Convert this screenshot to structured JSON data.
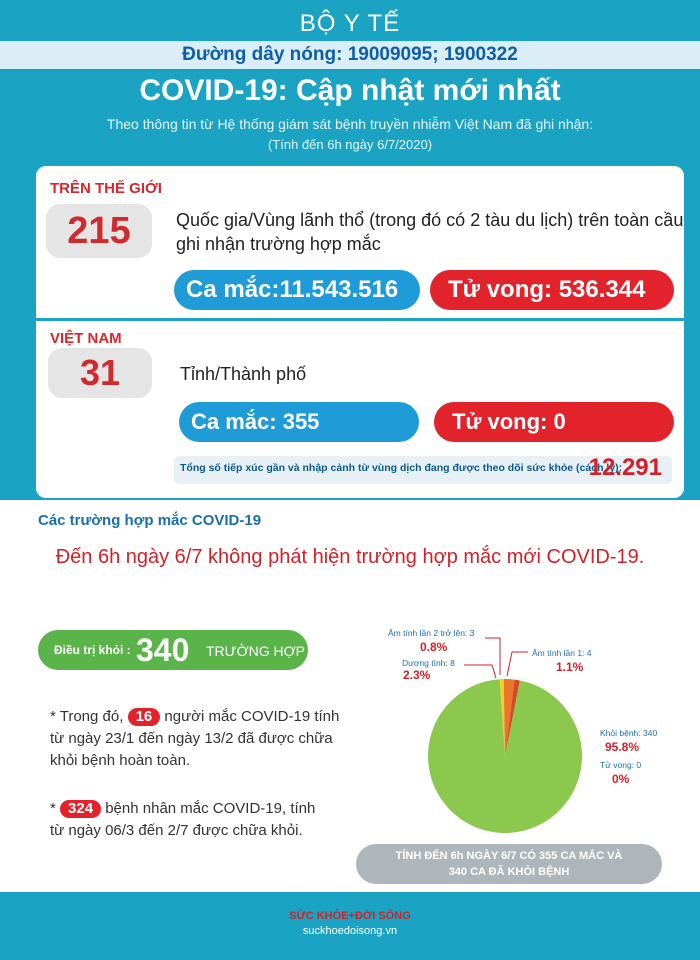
{
  "header": {
    "ministry": "BỘ Y TẾ",
    "hotline": "Đường dây nóng: 19009095; 1900322",
    "title": "COVID-19: Cập nhật mới nhất",
    "subtitle": "Theo thông tin từ Hệ thống giám sát bệnh truyền nhiễm Việt Nam đã ghi nhận:",
    "date_note": "(Tính đến 6h ngày 6/7/2020)"
  },
  "world": {
    "label": "TRÊN THẾ GIỚI",
    "count": "215",
    "desc_line1": "Quốc gia/Vùng lãnh thổ (trong đó có 2 tàu du lịch) trên toàn cầu",
    "desc_line2": "ghi nhận trường hợp mắc",
    "cases": "Ca mắc:11.543.516",
    "deaths": "Tử vong:  536.344"
  },
  "vietnam": {
    "label": "VIỆT NAM",
    "count": "31",
    "desc": "Tỉnh/Thành phố",
    "cases": "Ca mắc: 355",
    "deaths": "Tử vong:  0",
    "contacts_label": "Tổng số tiếp xúc gần và nhập cảnh từ vùng dịch đang được theo dõi sức khỏe (cách ly):",
    "contacts_value": "12.291"
  },
  "cases_section": {
    "title": "Các trường hợp mắc COVID-19",
    "headline": "Đến 6h ngày 6/7 không phát hiện trường hợp mắc mới COVID-19.",
    "treated_label": "Điều trị khỏi :",
    "treated_value": "340",
    "treated_unit": "TRƯỜNG HỢP",
    "note1_prefix": "* Trong đó,",
    "note1_badge": "16",
    "note1_l1": "người mắc COVID-19 tính",
    "note1_l2": "từ ngày 23/1 đến ngày 13/2 đã được chữa",
    "note1_l3": "khỏi bệnh hoàn toàn.",
    "note2_prefix": "*",
    "note2_badge": "324",
    "note2_l1": "bệnh nhân  mắc COVID-19, tính",
    "note2_l2": "từ ngày 06/3 đến 2/7 được chữa khỏi.",
    "summary_l1": "TÍNH ĐẾN 6h NGÀY 6/7 CÓ 355 CA MẮC VÀ",
    "summary_l2": "340 CA ĐÃ KHỎI BỆNH"
  },
  "chart_data": {
    "type": "pie",
    "slices": [
      {
        "label": "Âm tính lần 2 trở lên: 3",
        "value": 3,
        "pct": "0.8%",
        "color": "#f2d11f"
      },
      {
        "label": "Dương tính: 8",
        "value": 8,
        "pct": "2.3%",
        "color": "#e9762a"
      },
      {
        "label": "Âm tính lần 1: 4",
        "value": 4,
        "pct": "1.1%",
        "color": "#d6482a"
      },
      {
        "label": "Khỏi bệnh: 340",
        "value": 340,
        "pct": "95.8%",
        "color": "#8dc84e"
      },
      {
        "label": "Tử vong: 0",
        "value": 0,
        "pct": "0%",
        "color": "#d51f26"
      }
    ]
  },
  "footer": {
    "brand": "SỨC KHỎE+ĐỜI SỐNG",
    "site": "suckhoedoisong.vn"
  }
}
